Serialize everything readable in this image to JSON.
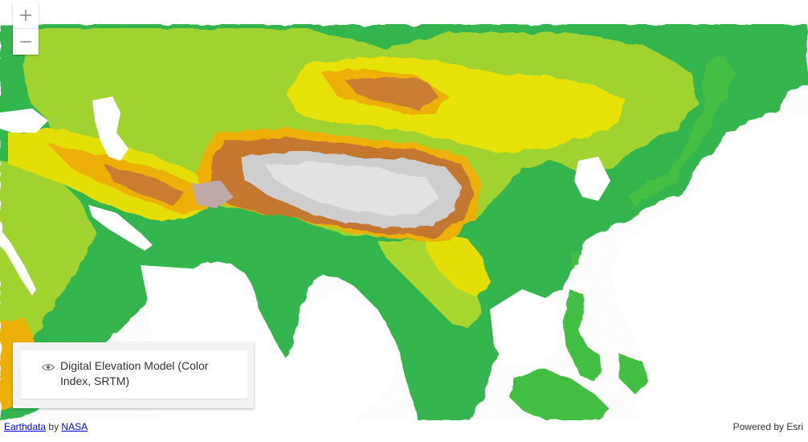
{
  "zoom": {
    "in_label": "+",
    "out_label": "–"
  },
  "layer_list": {
    "items": [
      {
        "title": "Digital Elevation Model (Color Index, SRTM)",
        "visible": true
      }
    ]
  },
  "attribution": {
    "source_link": "Earthdata",
    "by_text": "by",
    "provider_link": "NASA",
    "powered_by": "Powered by Esri"
  },
  "colors": {
    "lowland": "#1a9d3a",
    "low": "#5ec43a",
    "mid": "#e6e600",
    "upper": "#f0b400",
    "high": "#c8782a",
    "peak": "#c8c8c8",
    "water": "#ffffff"
  },
  "icons": [
    "plus-icon",
    "minus-icon",
    "eye-icon"
  ]
}
